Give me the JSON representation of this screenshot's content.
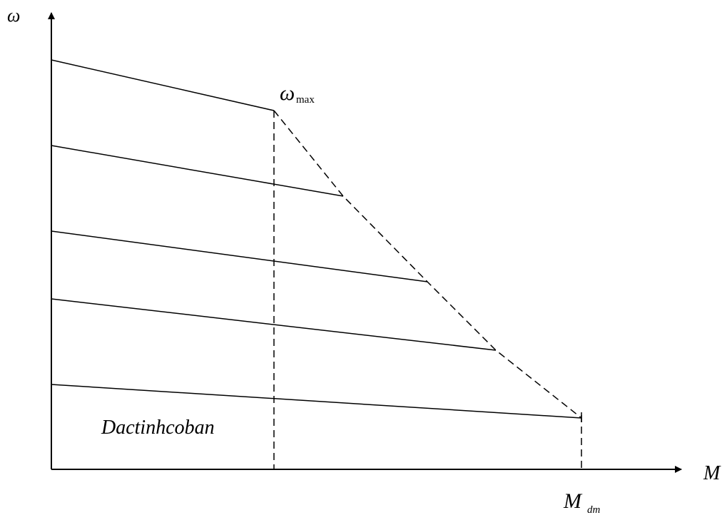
{
  "labels": {
    "y_axis": "ω",
    "x_axis": "M",
    "omega_main": "ω",
    "omega_sub": "max",
    "mdm_main": "M",
    "mdm_sub": "dm",
    "caption": "Dactinhcoban"
  },
  "colors": {
    "stroke": "#000000",
    "background": "#ffffff"
  }
}
